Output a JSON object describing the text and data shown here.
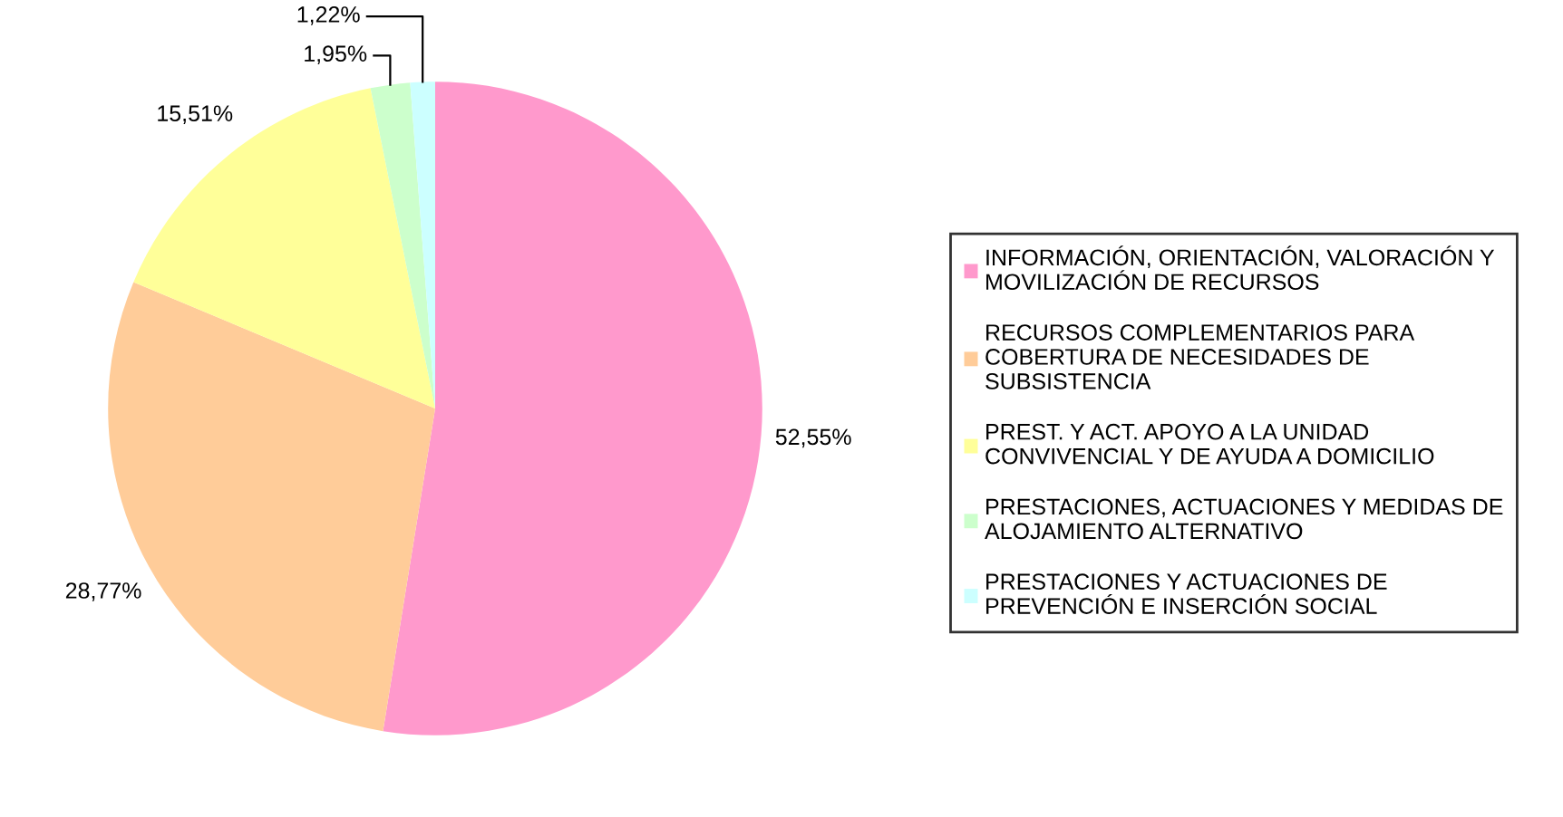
{
  "chart_data": {
    "type": "pie",
    "categories": [
      "INFORMACIÓN, ORIENTACIÓN, VALORACIÓN Y MOVILIZACIÓN DE RECURSOS",
      "RECURSOS COMPLEMENTARIOS PARA COBERTURA DE NECESIDADES DE SUBSISTENCIA",
      "PREST. Y ACT. APOYO A LA UNIDAD CONVIVENCIAL Y DE AYUDA A DOMICILIO",
      "PRESTACIONES, ACTUACIONES Y MEDIDAS DE ALOJAMIENTO ALTERNATIVO",
      "PRESTACIONES Y ACTUACIONES DE PREVENCIÓN E INSERCIÓN SOCIAL"
    ],
    "values": [
      52.55,
      28.77,
      15.51,
      1.95,
      1.22
    ],
    "value_labels": [
      "52,55%",
      "28,77%",
      "15,51%",
      "1,95%",
      "1,22%"
    ],
    "colors": [
      "#ff99cc",
      "#ffcc99",
      "#ffff99",
      "#ccffcc",
      "#ccffff"
    ],
    "legend": "right"
  }
}
